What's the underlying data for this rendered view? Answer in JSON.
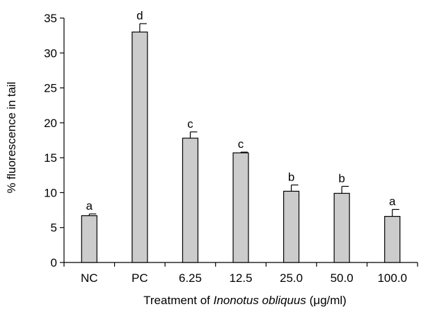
{
  "chart_data": {
    "type": "bar",
    "categories": [
      "NC",
      "PC",
      "6.25",
      "12.5",
      "25.0",
      "50.0",
      "100.0"
    ],
    "values": [
      6.7,
      33.0,
      17.8,
      15.7,
      10.2,
      9.9,
      6.6
    ],
    "errors": [
      0.25,
      1.2,
      0.9,
      0.1,
      0.9,
      1.0,
      1.0
    ],
    "significance_labels": [
      "a",
      "d",
      "c",
      "c",
      "b",
      "b",
      "a"
    ],
    "ylabel": "% fluorescence in tail",
    "xlabel": {
      "prefix": "Treatment of ",
      "italic": "Inonotus obliquus",
      "suffix": " (μg/ml)"
    },
    "ylim": [
      0,
      35
    ],
    "yticks": [
      0,
      5,
      10,
      15,
      20,
      25,
      30,
      35
    ],
    "grid": false,
    "bar_color": "#cccccc",
    "bar_edge_color": "#000000"
  }
}
